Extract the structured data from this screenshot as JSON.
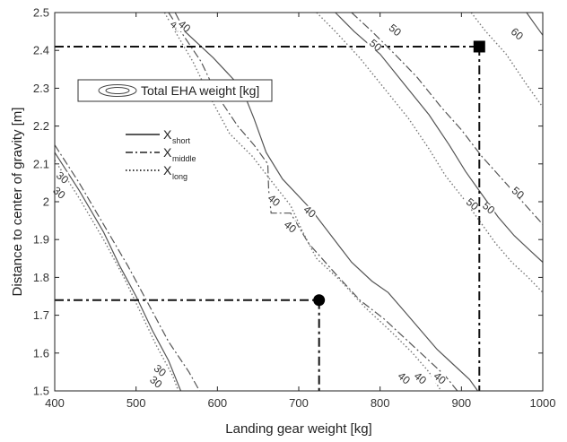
{
  "chart_data": {
    "type": "line",
    "title": "",
    "xlabel": "Landing gear weight [kg]",
    "ylabel": "Distance to center of gravity [m]",
    "xlim": [
      400,
      1000
    ],
    "ylim": [
      1.5,
      2.5
    ],
    "x_ticks": [
      "400",
      "500",
      "600",
      "700",
      "800",
      "900",
      "1000"
    ],
    "y_ticks": [
      "1.5",
      "1.6",
      "1.7",
      "1.8",
      "1.9",
      "2",
      "2.1",
      "2.2",
      "2.3",
      "2.4",
      "2.5"
    ],
    "grid": false,
    "contour_legend": {
      "label": "Total EHA weight [kg]"
    },
    "line_legend": {
      "placement": "upper-left",
      "entries": [
        {
          "base": "X",
          "sub": "short",
          "style": "solid"
        },
        {
          "base": "X",
          "sub": "middle",
          "style": "dashdot"
        },
        {
          "base": "X",
          "sub": "long",
          "style": "dotted"
        }
      ]
    },
    "series": [
      {
        "style": "solid",
        "level": "30",
        "points": [
          [
            400,
            2.13
          ],
          [
            430,
            2.03
          ],
          [
            460,
            1.92
          ],
          [
            480,
            1.83
          ],
          [
            500,
            1.75
          ],
          [
            520,
            1.66
          ],
          [
            540,
            1.58
          ],
          [
            555,
            1.5
          ]
        ]
      },
      {
        "style": "dashdot",
        "level": "30",
        "points": [
          [
            400,
            2.15
          ],
          [
            430,
            2.05
          ],
          [
            460,
            1.94
          ],
          [
            490,
            1.83
          ],
          [
            515,
            1.73
          ],
          [
            540,
            1.63
          ],
          [
            565,
            1.55
          ],
          [
            578,
            1.5
          ]
        ]
      },
      {
        "style": "dotted",
        "level": "30",
        "points": [
          [
            400,
            2.11
          ],
          [
            430,
            2.01
          ],
          [
            460,
            1.9
          ],
          [
            485,
            1.8
          ],
          [
            505,
            1.71
          ],
          [
            525,
            1.62
          ],
          [
            545,
            1.54
          ],
          [
            552,
            1.5
          ]
        ]
      },
      {
        "style": "solid",
        "level": "40",
        "points": [
          [
            548,
            2.5
          ],
          [
            560,
            2.45
          ],
          [
            595,
            2.38
          ],
          [
            630,
            2.3
          ],
          [
            645,
            2.22
          ],
          [
            660,
            2.13
          ],
          [
            680,
            2.06
          ],
          [
            715,
            1.98
          ],
          [
            740,
            1.91
          ],
          [
            765,
            1.84
          ],
          [
            790,
            1.79
          ],
          [
            810,
            1.76
          ],
          [
            830,
            1.71
          ],
          [
            850,
            1.66
          ],
          [
            870,
            1.61
          ],
          [
            890,
            1.57
          ],
          [
            910,
            1.53
          ],
          [
            920,
            1.5
          ]
        ]
      },
      {
        "style": "dashdot",
        "level": "40",
        "points": [
          [
            540,
            2.5
          ],
          [
            555,
            2.45
          ],
          [
            580,
            2.37
          ],
          [
            600,
            2.28
          ],
          [
            625,
            2.2
          ],
          [
            645,
            2.15
          ],
          [
            662,
            2.1
          ],
          [
            663,
            2.03
          ],
          [
            666,
            1.97
          ],
          [
            690,
            1.97
          ],
          [
            712,
            1.89
          ],
          [
            745,
            1.81
          ],
          [
            775,
            1.74
          ],
          [
            805,
            1.69
          ],
          [
            835,
            1.63
          ],
          [
            860,
            1.58
          ],
          [
            880,
            1.54
          ],
          [
            895,
            1.5
          ]
        ]
      },
      {
        "style": "dotted",
        "level": "40",
        "points": [
          [
            535,
            2.5
          ],
          [
            548,
            2.45
          ],
          [
            570,
            2.37
          ],
          [
            590,
            2.28
          ],
          [
            615,
            2.18
          ],
          [
            643,
            2.12
          ],
          [
            668,
            2.05
          ],
          [
            690,
            1.99
          ],
          [
            705,
            1.92
          ],
          [
            722,
            1.85
          ],
          [
            752,
            1.79
          ],
          [
            782,
            1.72
          ],
          [
            812,
            1.66
          ],
          [
            840,
            1.6
          ],
          [
            860,
            1.55
          ],
          [
            875,
            1.5
          ]
        ]
      },
      {
        "style": "solid",
        "level": "50",
        "points": [
          [
            745,
            2.5
          ],
          [
            768,
            2.45
          ],
          [
            800,
            2.39
          ],
          [
            830,
            2.31
          ],
          [
            860,
            2.23
          ],
          [
            885,
            2.15
          ],
          [
            905,
            2.08
          ],
          [
            925,
            2.02
          ],
          [
            945,
            1.96
          ],
          [
            965,
            1.91
          ],
          [
            985,
            1.87
          ],
          [
            1000,
            1.84
          ]
        ]
      },
      {
        "style": "dashdot",
        "level": "50",
        "points": [
          [
            765,
            2.5
          ],
          [
            790,
            2.45
          ],
          [
            818,
            2.39
          ],
          [
            845,
            2.33
          ],
          [
            875,
            2.25
          ],
          [
            900,
            2.19
          ],
          [
            925,
            2.12
          ],
          [
            950,
            2.06
          ],
          [
            975,
            2.0
          ],
          [
            1000,
            1.94
          ]
        ]
      },
      {
        "style": "dotted",
        "level": "50",
        "points": [
          [
            722,
            2.5
          ],
          [
            745,
            2.45
          ],
          [
            775,
            2.38
          ],
          [
            805,
            2.3
          ],
          [
            835,
            2.22
          ],
          [
            860,
            2.14
          ],
          [
            880,
            2.07
          ],
          [
            902,
            2.01
          ],
          [
            922,
            1.95
          ],
          [
            942,
            1.89
          ],
          [
            962,
            1.84
          ],
          [
            982,
            1.8
          ],
          [
            1000,
            1.76
          ]
        ]
      },
      {
        "style": "solid",
        "level": "",
        "points": [
          [
            980,
            2.5
          ],
          [
            990,
            2.47
          ],
          [
            1000,
            2.44
          ]
        ]
      },
      {
        "style": "dotted",
        "level": "60",
        "points": [
          [
            912,
            2.5
          ],
          [
            930,
            2.45
          ],
          [
            955,
            2.39
          ],
          [
            980,
            2.31
          ],
          [
            1000,
            2.25
          ]
        ]
      }
    ],
    "contour_labels": [
      {
        "text": "30",
        "x": 408,
        "y": 2.06
      },
      {
        "text": "30",
        "x": 404,
        "y": 2.02
      },
      {
        "text": "30",
        "x": 528,
        "y": 1.55
      },
      {
        "text": "30",
        "x": 523,
        "y": 1.52
      },
      {
        "text": "40",
        "x": 548,
        "y": 2.46
      },
      {
        "text": "40",
        "x": 558,
        "y": 2.46
      },
      {
        "text": "40",
        "x": 668,
        "y": 2.0
      },
      {
        "text": "40",
        "x": 688,
        "y": 1.93
      },
      {
        "text": "40",
        "x": 712,
        "y": 1.97
      },
      {
        "text": "40",
        "x": 828,
        "y": 1.53
      },
      {
        "text": "40",
        "x": 848,
        "y": 1.53
      },
      {
        "text": "40",
        "x": 872,
        "y": 1.53
      },
      {
        "text": "50",
        "x": 793,
        "y": 2.41
      },
      {
        "text": "50",
        "x": 817,
        "y": 2.45
      },
      {
        "text": "50",
        "x": 912,
        "y": 1.99
      },
      {
        "text": "50",
        "x": 932,
        "y": 1.98
      },
      {
        "text": "50",
        "x": 968,
        "y": 2.02
      },
      {
        "text": "60",
        "x": 967,
        "y": 2.44
      }
    ],
    "reference_points": [
      {
        "marker": "circle",
        "x": 725,
        "y": 1.74
      },
      {
        "marker": "square",
        "x": 922,
        "y": 2.41
      }
    ]
  }
}
